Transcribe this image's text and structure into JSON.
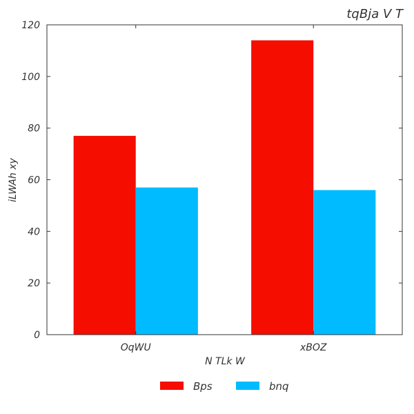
{
  "chart_data": {
    "type": "bar",
    "title": "tqBja V T",
    "xlabel": "N TLk W",
    "ylabel": "iLWAh xy",
    "categories": [
      "OqWU",
      "xBOZ"
    ],
    "series": [
      {
        "name": "Bps",
        "values": [
          77,
          114
        ],
        "color": "#f50d00"
      },
      {
        "name": "bnq",
        "values": [
          57,
          56
        ],
        "color": "#00bbff"
      }
    ],
    "ylim": [
      0,
      120
    ],
    "yticks": [
      "0",
      "20",
      "40",
      "60",
      "80",
      "100",
      "120"
    ],
    "grid": false,
    "legend_position": "bottom-center"
  }
}
